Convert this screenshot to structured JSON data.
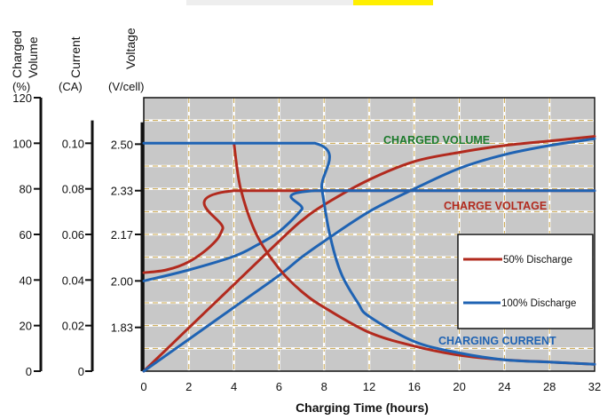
{
  "chart_data": {
    "type": "line",
    "xlabel": "Charging Time (hours)",
    "x_ticks": [
      "0",
      "2",
      "4",
      "6",
      "8",
      "12",
      "16",
      "20",
      "24",
      "28",
      "32"
    ],
    "y_axes": [
      {
        "title_line1": "Charged",
        "title_line2": "Volume",
        "unit": "(%)",
        "ticks": [
          "0",
          "20",
          "40",
          "60",
          "80",
          "100",
          "120"
        ],
        "range": [
          0,
          120
        ]
      },
      {
        "title_line1": "Current",
        "title_line2": "",
        "unit": "(CA)",
        "ticks": [
          "0",
          "0.02",
          "0.04",
          "0.06",
          "0.08",
          "0.10"
        ],
        "range": [
          0,
          0.12
        ]
      },
      {
        "title_line1": "Voltage",
        "title_line2": "",
        "unit": "(V/cell)",
        "ticks": [
          "1.83",
          "2.00",
          "2.17",
          "2.33",
          "2.50"
        ],
        "range": [
          1.67,
          2.67
        ]
      }
    ],
    "annotations": [
      "CHARGED VOLUME",
      "CHARGE VOLTAGE",
      "CHARGING CURRENT"
    ],
    "legend": [
      {
        "label": "50% Discharge",
        "color": "#b22a1e"
      },
      {
        "label": "100% Discharge",
        "color": "#1f63b3"
      }
    ],
    "legend_position": "right",
    "grid": true,
    "series": [
      {
        "legend": "50% Discharge",
        "quantity": "charged volume",
        "axis": 0,
        "points": [
          [
            0,
            0
          ],
          [
            2,
            19
          ],
          [
            4,
            38
          ],
          [
            6,
            57
          ],
          [
            7,
            66
          ],
          [
            8,
            73
          ],
          [
            12,
            84
          ],
          [
            16,
            92
          ],
          [
            20,
            96
          ],
          [
            24,
            99
          ],
          [
            28,
            101
          ],
          [
            32,
            103
          ]
        ]
      },
      {
        "legend": "100% Discharge",
        "quantity": "charged volume",
        "axis": 0,
        "points": [
          [
            0,
            0
          ],
          [
            2,
            14
          ],
          [
            4,
            28
          ],
          [
            6,
            42
          ],
          [
            7,
            50
          ],
          [
            8,
            57
          ],
          [
            12,
            70
          ],
          [
            16,
            80
          ],
          [
            20,
            89
          ],
          [
            24,
            95
          ],
          [
            28,
            99
          ],
          [
            32,
            102
          ]
        ]
      },
      {
        "legend": "50% Discharge",
        "quantity": "charge voltage",
        "axis": 2,
        "points": [
          [
            0,
            2.03
          ],
          [
            1,
            2.04
          ],
          [
            2,
            2.07
          ],
          [
            3,
            2.13
          ],
          [
            3.5,
            2.19
          ],
          [
            4,
            2.33
          ],
          [
            32,
            2.33
          ]
        ]
      },
      {
        "legend": "100% Discharge",
        "quantity": "charge voltage",
        "axis": 2,
        "points": [
          [
            0,
            2.0
          ],
          [
            2,
            2.04
          ],
          [
            4,
            2.09
          ],
          [
            5,
            2.13
          ],
          [
            6,
            2.18
          ],
          [
            7,
            2.26
          ],
          [
            7.6,
            2.33
          ],
          [
            32,
            2.33
          ]
        ]
      },
      {
        "legend": "50% Discharge",
        "quantity": "charging current",
        "axis": 1,
        "points": [
          [
            4,
            0.1
          ],
          [
            4.3,
            0.08
          ],
          [
            5,
            0.06
          ],
          [
            6,
            0.045
          ],
          [
            7,
            0.035
          ],
          [
            8,
            0.028
          ],
          [
            12,
            0.017
          ],
          [
            16,
            0.011
          ],
          [
            20,
            0.007
          ],
          [
            24,
            0.005
          ],
          [
            28,
            0.004
          ],
          [
            32,
            0.003
          ]
        ]
      },
      {
        "legend": "100% Discharge",
        "quantity": "charging current",
        "axis": 1,
        "points": [
          [
            0,
            0.1
          ],
          [
            7.6,
            0.1
          ],
          [
            7.9,
            0.08
          ],
          [
            8.5,
            0.06
          ],
          [
            9.5,
            0.043
          ],
          [
            11,
            0.03
          ],
          [
            12,
            0.024
          ],
          [
            16,
            0.013
          ],
          [
            20,
            0.008
          ],
          [
            24,
            0.005
          ],
          [
            28,
            0.004
          ],
          [
            32,
            0.003
          ]
        ]
      }
    ]
  }
}
